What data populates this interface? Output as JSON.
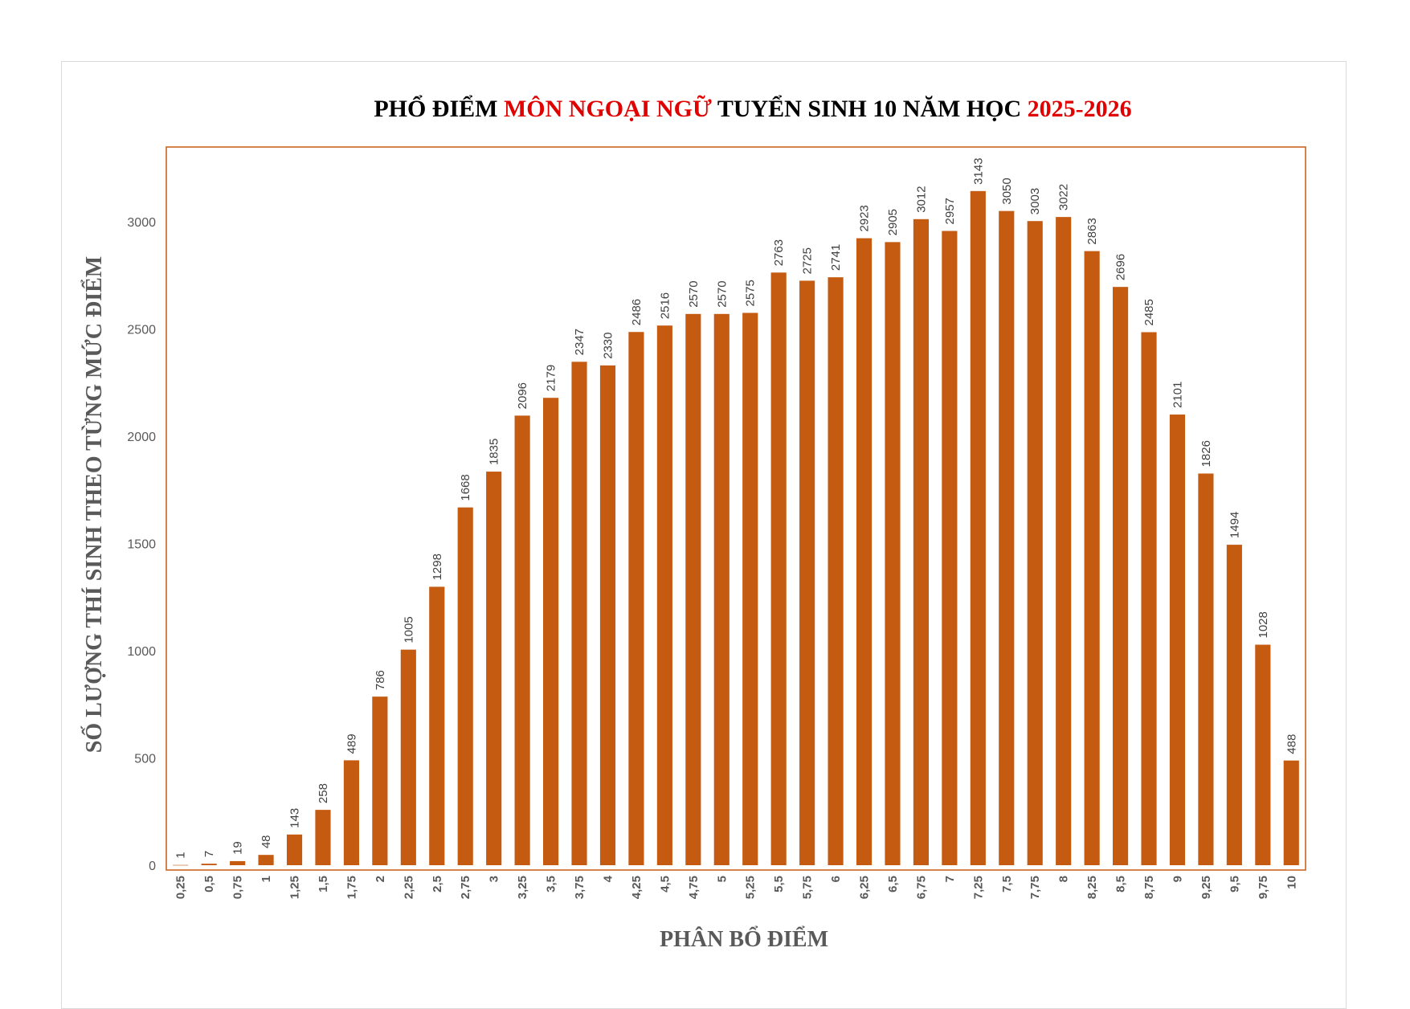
{
  "colors": {
    "bar": "#c55a11",
    "plot_border": "#c55a11",
    "title_black": "#000000",
    "title_red": "#e00000",
    "axis_text": "#595959"
  },
  "chart_data": {
    "type": "bar",
    "title_parts": [
      {
        "text": "PHỔ ĐIỂM ",
        "color": "#000000"
      },
      {
        "text": "MÔN NGOẠI NGỮ",
        "color": "#e00000"
      },
      {
        "text": " TUYỂN SINH 10 NĂM HỌC ",
        "color": "#000000"
      },
      {
        "text": "2025-2026",
        "color": "#e00000"
      }
    ],
    "xlabel": "PHÂN BỔ ĐIỂM",
    "ylabel": "SỐ LƯỢNG THÍ SINH THEO TỪNG MỨC ĐIỂM",
    "ylim": [
      0,
      3350
    ],
    "yticks": [
      0,
      500,
      1000,
      1500,
      2000,
      2500,
      3000
    ],
    "grid": false,
    "legend": "none",
    "categories": [
      "0,25",
      "0,5",
      "0,75",
      "1",
      "1,25",
      "1,5",
      "1,75",
      "2",
      "2,25",
      "2,5",
      "2,75",
      "3",
      "3,25",
      "3,5",
      "3,75",
      "4",
      "4,25",
      "4,5",
      "4,75",
      "5",
      "5,25",
      "5,5",
      "5,75",
      "6",
      "6,25",
      "6,5",
      "6,75",
      "7",
      "7,25",
      "7,5",
      "7,75",
      "8",
      "8,25",
      "8,5",
      "8,75",
      "9",
      "9,25",
      "9,5",
      "9,75",
      "10"
    ],
    "values": [
      1,
      7,
      19,
      48,
      143,
      258,
      489,
      786,
      1005,
      1298,
      1668,
      1835,
      2096,
      2179,
      2347,
      2330,
      2486,
      2516,
      2570,
      2570,
      2575,
      2763,
      2725,
      2741,
      2923,
      2905,
      3012,
      2957,
      3143,
      3050,
      3003,
      3022,
      2863,
      2696,
      2485,
      2101,
      1826,
      1494,
      1028,
      488
    ]
  }
}
